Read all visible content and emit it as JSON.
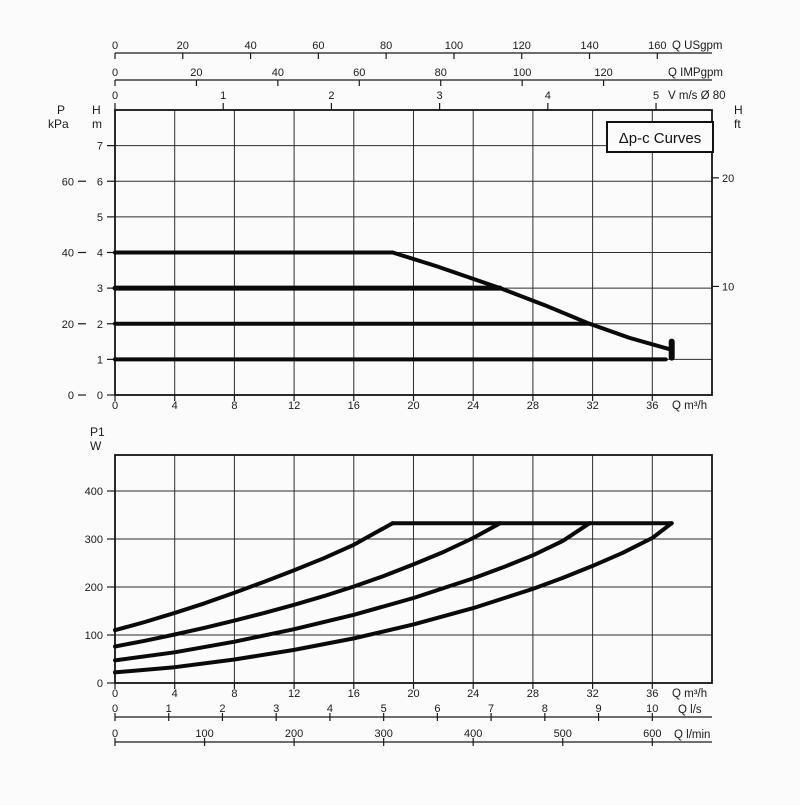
{
  "figure": {
    "title": "Δp-c Curves"
  },
  "chart_data": [
    {
      "id": "head-curves",
      "type": "line",
      "title": "Δp-c Curves",
      "x_axis": {
        "unit": "Q m³/h",
        "min": 0,
        "max": 40,
        "ticks": [
          0,
          4,
          8,
          12,
          16,
          20,
          24,
          28,
          32,
          36
        ],
        "grid_step": 4
      },
      "y_axis": {
        "unit_top": "H",
        "unit_bottom": "m",
        "min": 0,
        "max": 8,
        "ticks": [
          0,
          1,
          2,
          3,
          4,
          5,
          6,
          7
        ],
        "grid_step": 1
      },
      "y_axis_pressure": {
        "unit_top": "P",
        "unit_bottom": "kPa",
        "ticks": [
          0,
          20,
          40,
          60
        ],
        "kpa_per_m": 10
      },
      "y_axis_right": {
        "unit_top": "H",
        "unit_bottom": "ft",
        "ticks": [
          10,
          20
        ],
        "m_per_ft": 0.3048
      },
      "x_axis_top": [
        {
          "unit": "Q USgpm",
          "ticks": [
            0,
            20,
            40,
            60,
            80,
            100,
            120,
            140,
            160
          ],
          "m3h_per_unit": 0.2271
        },
        {
          "unit": "Q IMPgpm",
          "ticks": [
            0,
            20,
            40,
            60,
            80,
            100,
            120
          ],
          "m3h_per_unit": 0.2728
        },
        {
          "unit": "V m/s Ø 80",
          "ticks": [
            0,
            1,
            2,
            3,
            4,
            5
          ],
          "m3h_per_unit": 7.25
        }
      ],
      "series": [
        {
          "name": "dpc-setpoint-4m",
          "points": [
            [
              0,
              4
            ],
            [
              18.6,
              4
            ]
          ],
          "width": 4
        },
        {
          "name": "dpc-setpoint-3m",
          "points": [
            [
              0,
              3
            ],
            [
              25.8,
              3
            ]
          ],
          "width": 5
        },
        {
          "name": "dpc-setpoint-2m",
          "points": [
            [
              0,
              2
            ],
            [
              31.8,
              2
            ]
          ],
          "width": 4
        },
        {
          "name": "dpc-setpoint-1m",
          "points": [
            [
              0,
              1
            ],
            [
              36.9,
              1
            ]
          ],
          "width": 4
        },
        {
          "name": "max-speed-limit",
          "points": [
            [
              18.6,
              4
            ],
            [
              21.5,
              3.62
            ],
            [
              25.8,
              3
            ],
            [
              28.8,
              2.52
            ],
            [
              31.8,
              2
            ],
            [
              34.5,
              1.6
            ],
            [
              37.3,
              1.27
            ]
          ],
          "width": 4
        },
        {
          "name": "curve-end-marker",
          "points": [
            [
              37.3,
              1.05
            ],
            [
              37.3,
              1.5
            ]
          ],
          "width": 6
        }
      ]
    },
    {
      "id": "power-curves",
      "type": "line",
      "y_axis": {
        "unit_top": "P1",
        "unit_bottom": "W",
        "min": 0,
        "max": 475,
        "ticks": [
          0,
          100,
          200,
          300,
          400
        ],
        "grid_step": 100
      },
      "x_axis": {
        "unit": "Q m³/h",
        "min": 0,
        "max": 40,
        "ticks": [
          0,
          4,
          8,
          12,
          16,
          20,
          24,
          28,
          32,
          36
        ],
        "grid_step": 4
      },
      "x_axis_bottom": [
        {
          "unit": "Q l/s",
          "ticks": [
            0,
            1,
            2,
            3,
            4,
            5,
            6,
            7,
            8,
            9,
            10
          ],
          "m3h_per_unit": 3.6
        },
        {
          "unit": "Q l/min",
          "ticks": [
            0,
            100,
            200,
            300,
            400,
            500,
            600
          ],
          "m3h_per_unit": 0.06
        }
      ],
      "series": [
        {
          "name": "power-limit",
          "points": [
            [
              18.6,
              333
            ],
            [
              37.3,
              333
            ]
          ],
          "width": 4
        },
        {
          "name": "power-dpc-4m",
          "points": [
            [
              0,
              110
            ],
            [
              2,
              127
            ],
            [
              4,
              146
            ],
            [
              6,
              166
            ],
            [
              8,
              188
            ],
            [
              10,
              211
            ],
            [
              12,
              235
            ],
            [
              14,
              260
            ],
            [
              16,
              288
            ],
            [
              18.6,
              333
            ]
          ],
          "width": 4
        },
        {
          "name": "power-dpc-3m",
          "points": [
            [
              0,
              76
            ],
            [
              2,
              88
            ],
            [
              4,
              101
            ],
            [
              6,
              115
            ],
            [
              8,
              130
            ],
            [
              10,
              146
            ],
            [
              12,
              163
            ],
            [
              14,
              181
            ],
            [
              16,
              201
            ],
            [
              18,
              223
            ],
            [
              20,
              247
            ],
            [
              22,
              273
            ],
            [
              24,
              302
            ],
            [
              25.8,
              333
            ]
          ],
          "width": 4
        },
        {
          "name": "power-dpc-2m",
          "points": [
            [
              0,
              47
            ],
            [
              4,
              64
            ],
            [
              8,
              86
            ],
            [
              12,
              112
            ],
            [
              16,
              142
            ],
            [
              20,
              177
            ],
            [
              24,
              218
            ],
            [
              26,
              241
            ],
            [
              28,
              266
            ],
            [
              30,
              296
            ],
            [
              31.8,
              333
            ]
          ],
          "width": 4
        },
        {
          "name": "power-dpc-1m",
          "points": [
            [
              0,
              22
            ],
            [
              4,
              33
            ],
            [
              8,
              49
            ],
            [
              12,
              69
            ],
            [
              16,
              93
            ],
            [
              20,
              122
            ],
            [
              24,
              156
            ],
            [
              28,
              196
            ],
            [
              30,
              219
            ],
            [
              32,
              244
            ],
            [
              34,
              271
            ],
            [
              36,
              302
            ],
            [
              37.3,
              333
            ]
          ],
          "width": 4
        }
      ]
    }
  ]
}
